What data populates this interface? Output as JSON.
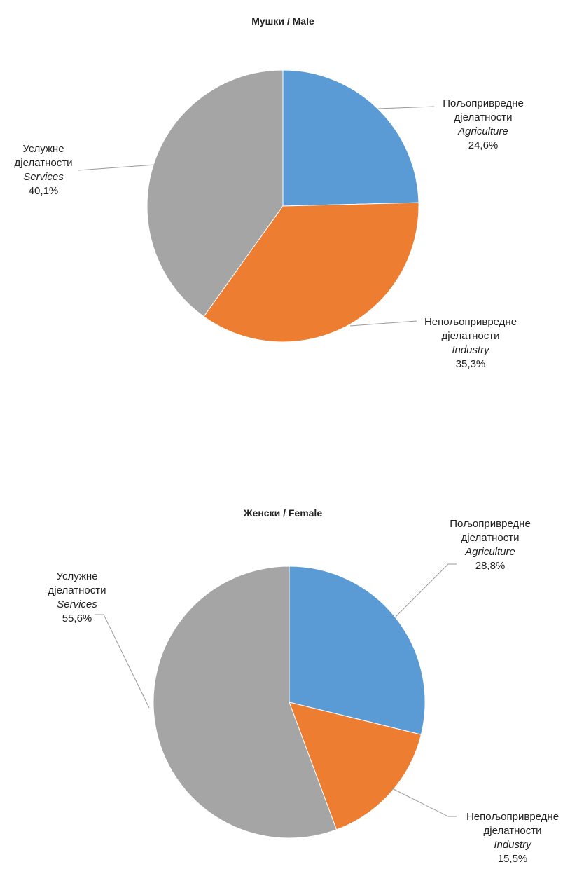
{
  "chart_data": [
    {
      "type": "pie",
      "title": "Мушки / Male",
      "categories": [
        "Пољопривредне дјелатности",
        "Непољопривредне дјелатности",
        "Услужне дјелатности"
      ],
      "categories_en": [
        "Agriculture",
        "Industry",
        "Services"
      ],
      "values": [
        24.6,
        35.3,
        40.1
      ],
      "value_labels": [
        "24,6%",
        "35,3%",
        "40,1%"
      ],
      "colors": [
        "#5b9bd5",
        "#ed7d31",
        "#a5a5a5"
      ]
    },
    {
      "type": "pie",
      "title": "Женски / Female",
      "categories": [
        "Пољопривредне дјелатности",
        "Непољопривредне дјелатности",
        "Услужне дјелатности"
      ],
      "categories_en": [
        "Agriculture",
        "Industry",
        "Services"
      ],
      "values": [
        28.8,
        15.5,
        55.6
      ],
      "value_labels": [
        "28,8%",
        "15,5%",
        "55,6%"
      ],
      "colors": [
        "#5b9bd5",
        "#ed7d31",
        "#a5a5a5"
      ]
    }
  ]
}
